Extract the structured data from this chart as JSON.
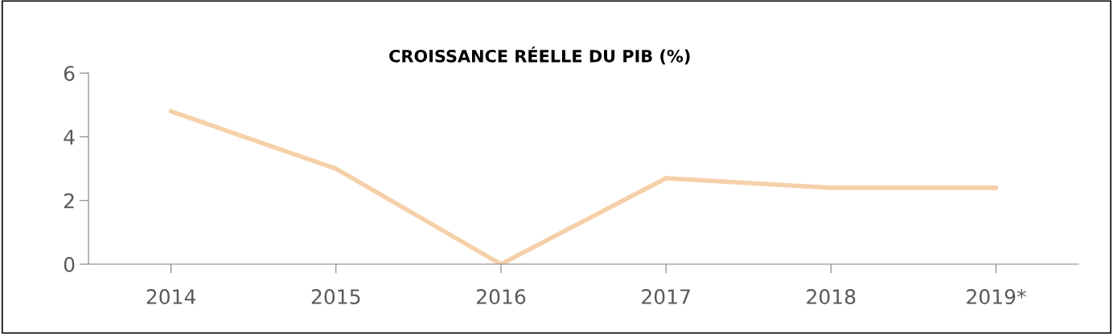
{
  "chart_data": {
    "type": "line",
    "title": "CROISSANCE RÉELLE DU PIB (%)",
    "categories": [
      "2014",
      "2015",
      "2016",
      "2017",
      "2018",
      "2019*"
    ],
    "series": [
      {
        "color": "#f5d0a9",
        "values": [
          4.8,
          3.0,
          0.0,
          2.7,
          2.4,
          2.4
        ]
      }
    ],
    "ylim": [
      0,
      6
    ],
    "yticks": [
      0,
      2,
      4,
      6
    ],
    "grid": false,
    "legend": false,
    "marker": "none",
    "line_style": "solid"
  }
}
